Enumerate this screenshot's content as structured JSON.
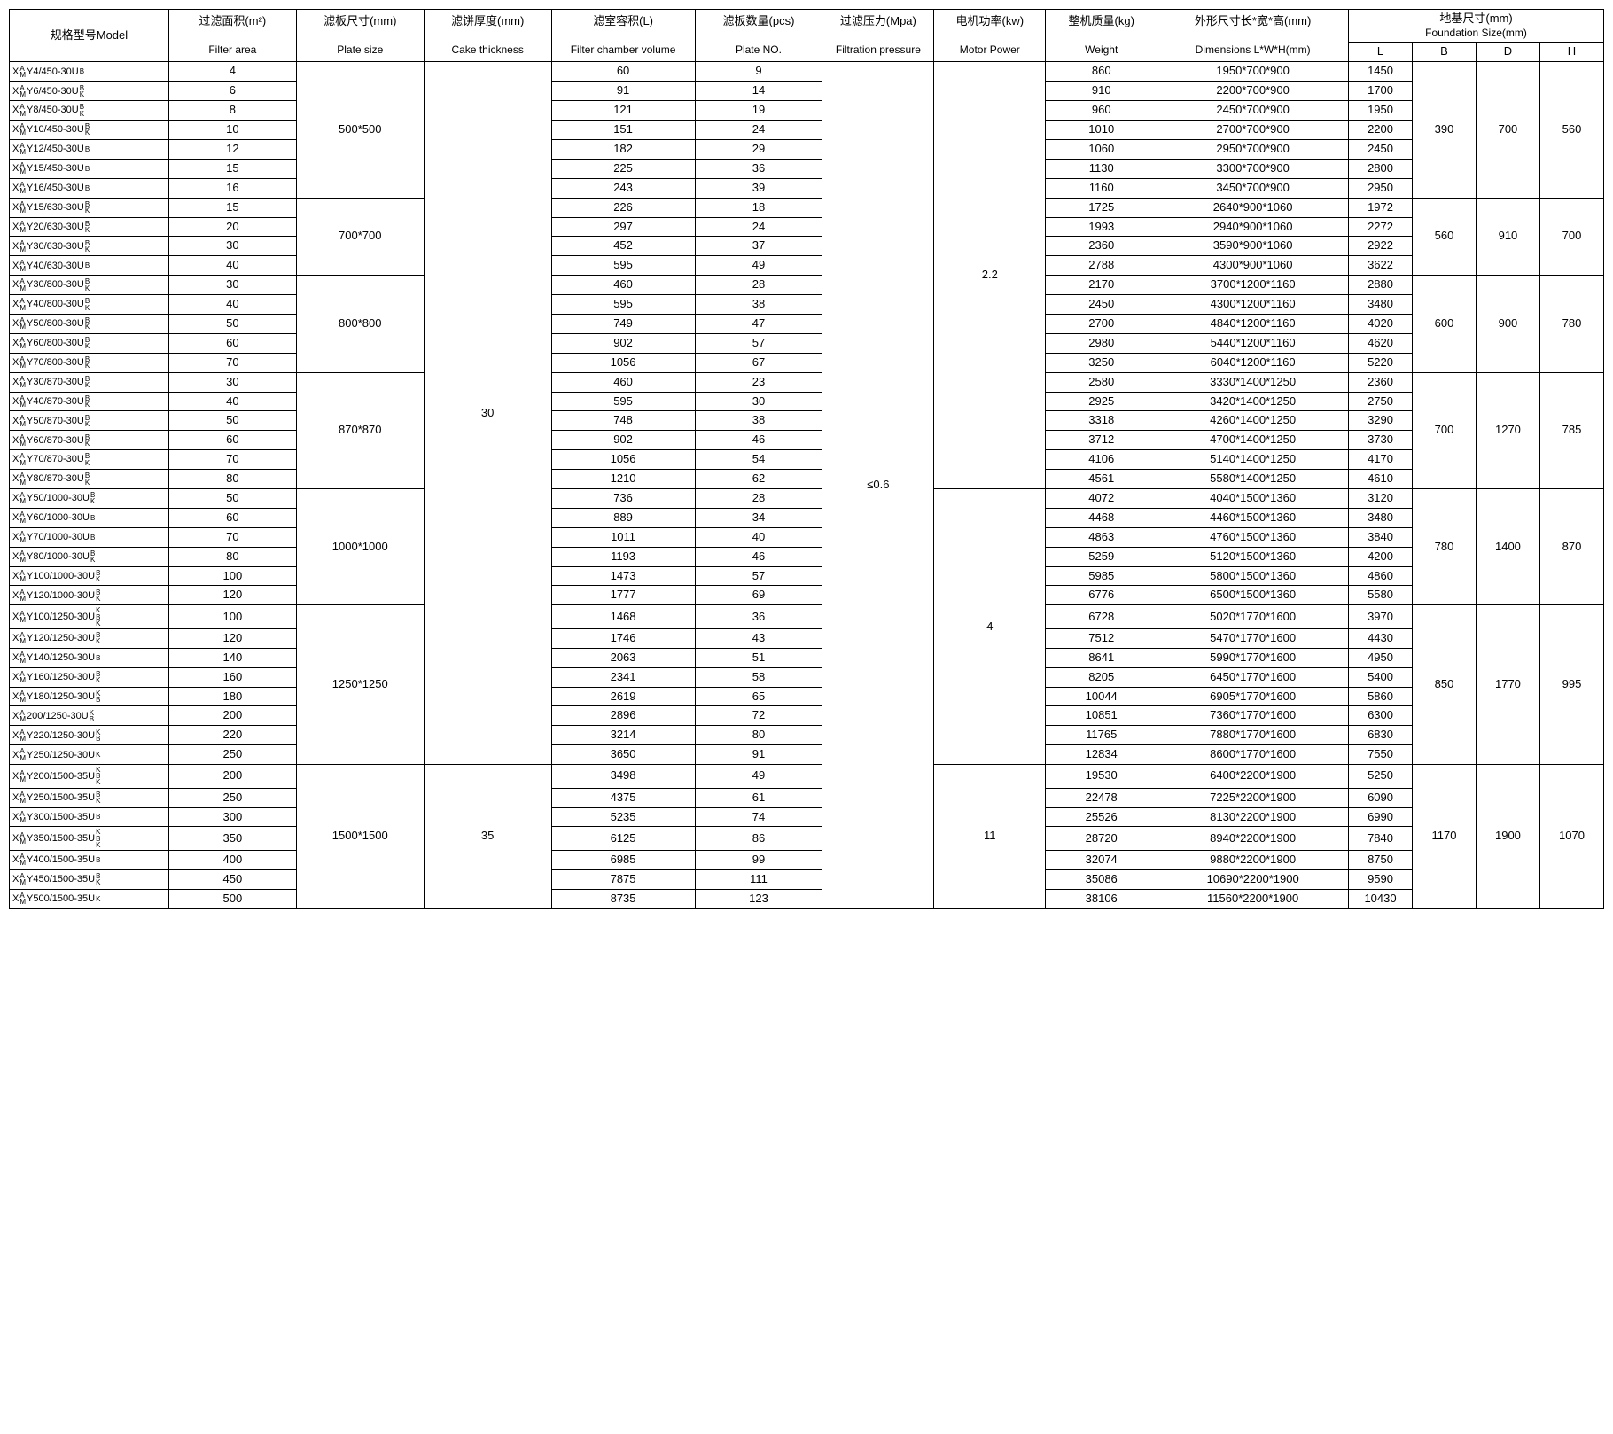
{
  "headers": {
    "model_cn": "规格型号Model",
    "filter_area_cn": "过滤面积(m²)",
    "filter_area_en": "Filter area",
    "plate_size_cn": "滤板尺寸(mm)",
    "plate_size_en": "Plate size",
    "cake_cn": "滤饼厚度(mm)",
    "cake_en": "Cake thickness",
    "vol_cn": "滤室容积(L)",
    "vol_en": "Filter chamber volume",
    "plate_no_cn": "滤板数量(pcs)",
    "plate_no_en": "Plate NO.",
    "pressure_cn": "过滤压力(Mpa)",
    "pressure_en": "Filtration pressure",
    "motor_cn": "电机功率(kw)",
    "motor_en": "Motor Power",
    "weight_cn": "整机质量(kg)",
    "weight_en": "Weight",
    "dim_cn": "外形尺寸长*宽*高(mm)",
    "dim_en": "Dimensions L*W*H(mm)",
    "found_cn": "地基尺寸(mm)",
    "found_en": "Foundation Size(mm)",
    "L": "L",
    "B": "B",
    "D": "D",
    "H": "H"
  },
  "prefix_top": "A",
  "prefix_bot": "M",
  "suffix_B": "B",
  "suffix_K": "K",
  "pressure": "≤0.6",
  "cake30": "30",
  "cake35": "35",
  "mp22": "2.2",
  "mp4": "4",
  "mp11": "11",
  "groups": [
    {
      "plate": "500*500",
      "foundB": "390",
      "foundD": "700",
      "foundH": "560",
      "rows": [
        {
          "model": "Y4/450-30U",
          "fa": "4",
          "vol": "60",
          "pn": "9",
          "wt": "860",
          "dim": "1950*700*900",
          "L": "1450",
          "suffix": "B"
        },
        {
          "model": "Y6/450-30U",
          "fa": "6",
          "vol": "91",
          "pn": "14",
          "wt": "910",
          "dim": "2200*700*900",
          "L": "1700",
          "suffix": "BK"
        },
        {
          "model": "Y8/450-30U",
          "fa": "8",
          "vol": "121",
          "pn": "19",
          "wt": "960",
          "dim": "2450*700*900",
          "L": "1950",
          "suffix": "BK"
        },
        {
          "model": "Y10/450-30U",
          "fa": "10",
          "vol": "151",
          "pn": "24",
          "wt": "1010",
          "dim": "2700*700*900",
          "L": "2200",
          "suffix": "BK"
        },
        {
          "model": "Y12/450-30U",
          "fa": "12",
          "vol": "182",
          "pn": "29",
          "wt": "1060",
          "dim": "2950*700*900",
          "L": "2450",
          "suffix": "B"
        },
        {
          "model": "Y15/450-30U",
          "fa": "15",
          "vol": "225",
          "pn": "36",
          "wt": "1130",
          "dim": "3300*700*900",
          "L": "2800",
          "suffix": "B"
        },
        {
          "model": "Y16/450-30U",
          "fa": "16",
          "vol": "243",
          "pn": "39",
          "wt": "1160",
          "dim": "3450*700*900",
          "L": "2950",
          "suffix": "B"
        }
      ]
    },
    {
      "plate": "700*700",
      "foundB": "560",
      "foundD": "910",
      "foundH": "700",
      "rows": [
        {
          "model": "Y15/630-30U",
          "fa": "15",
          "vol": "226",
          "pn": "18",
          "wt": "1725",
          "dim": "2640*900*1060",
          "L": "1972",
          "suffix": "BK"
        },
        {
          "model": "Y20/630-30U",
          "fa": "20",
          "vol": "297",
          "pn": "24",
          "wt": "1993",
          "dim": "2940*900*1060",
          "L": "2272",
          "suffix": "BK"
        },
        {
          "model": "Y30/630-30U",
          "fa": "30",
          "vol": "452",
          "pn": "37",
          "wt": "2360",
          "dim": "3590*900*1060",
          "L": "2922",
          "suffix": "BK"
        },
        {
          "model": "Y40/630-30U",
          "fa": "40",
          "vol": "595",
          "pn": "49",
          "wt": "2788",
          "dim": "4300*900*1060",
          "L": "3622",
          "suffix": "B"
        }
      ]
    },
    {
      "plate": "800*800",
      "foundB": "600",
      "foundD": "900",
      "foundH": "780",
      "rows": [
        {
          "model": "Y30/800-30U",
          "fa": "30",
          "vol": "460",
          "pn": "28",
          "wt": "2170",
          "dim": "3700*1200*1160",
          "L": "2880",
          "suffix": "BK"
        },
        {
          "model": "Y40/800-30U",
          "fa": "40",
          "vol": "595",
          "pn": "38",
          "wt": "2450",
          "dim": "4300*1200*1160",
          "L": "3480",
          "suffix": "BK"
        },
        {
          "model": "Y50/800-30U",
          "fa": "50",
          "vol": "749",
          "pn": "47",
          "wt": "2700",
          "dim": "4840*1200*1160",
          "L": "4020",
          "suffix": "BK"
        },
        {
          "model": "Y60/800-30U",
          "fa": "60",
          "vol": "902",
          "pn": "57",
          "wt": "2980",
          "dim": "5440*1200*1160",
          "L": "4620",
          "suffix": "BK"
        },
        {
          "model": "Y70/800-30U",
          "fa": "70",
          "vol": "1056",
          "pn": "67",
          "wt": "3250",
          "dim": "6040*1200*1160",
          "L": "5220",
          "suffix": "BK"
        }
      ]
    },
    {
      "plate": "870*870",
      "foundB": "700",
      "foundD": "1270",
      "foundH": "785",
      "rows": [
        {
          "model": "Y30/870-30U",
          "fa": "30",
          "vol": "460",
          "pn": "23",
          "wt": "2580",
          "dim": "3330*1400*1250",
          "L": "2360",
          "suffix": "BK"
        },
        {
          "model": "Y40/870-30U",
          "fa": "40",
          "vol": "595",
          "pn": "30",
          "wt": "2925",
          "dim": "3420*1400*1250",
          "L": "2750",
          "suffix": "BK"
        },
        {
          "model": "Y50/870-30U",
          "fa": "50",
          "vol": "748",
          "pn": "38",
          "wt": "3318",
          "dim": "4260*1400*1250",
          "L": "3290",
          "suffix": "BK"
        },
        {
          "model": "Y60/870-30U",
          "fa": "60",
          "vol": "902",
          "pn": "46",
          "wt": "3712",
          "dim": "4700*1400*1250",
          "L": "3730",
          "suffix": "BK"
        },
        {
          "model": "Y70/870-30U",
          "fa": "70",
          "vol": "1056",
          "pn": "54",
          "wt": "4106",
          "dim": "5140*1400*1250",
          "L": "4170",
          "suffix": "BK"
        },
        {
          "model": "Y80/870-30U",
          "fa": "80",
          "vol": "1210",
          "pn": "62",
          "wt": "4561",
          "dim": "5580*1400*1250",
          "L": "4610",
          "suffix": "BK"
        }
      ]
    },
    {
      "plate": "1000*1000",
      "foundB": "780",
      "foundD": "1400",
      "foundH": "870",
      "rows": [
        {
          "model": "Y50/1000-30U",
          "fa": "50",
          "vol": "736",
          "pn": "28",
          "wt": "4072",
          "dim": "4040*1500*1360",
          "L": "3120",
          "suffix": "BK"
        },
        {
          "model": "Y60/1000-30U",
          "fa": "60",
          "vol": "889",
          "pn": "34",
          "wt": "4468",
          "dim": "4460*1500*1360",
          "L": "3480",
          "suffix": "B"
        },
        {
          "model": "Y70/1000-30U",
          "fa": "70",
          "vol": "1011",
          "pn": "40",
          "wt": "4863",
          "dim": "4760*1500*1360",
          "L": "3840",
          "suffix": "B"
        },
        {
          "model": "Y80/1000-30U",
          "fa": "80",
          "vol": "1193",
          "pn": "46",
          "wt": "5259",
          "dim": "5120*1500*1360",
          "L": "4200",
          "suffix": "BK"
        },
        {
          "model": "Y100/1000-30U",
          "fa": "100",
          "vol": "1473",
          "pn": "57",
          "wt": "5985",
          "dim": "5800*1500*1360",
          "L": "4860",
          "suffix": "BK"
        },
        {
          "model": "Y120/1000-30U",
          "fa": "120",
          "vol": "1777",
          "pn": "69",
          "wt": "6776",
          "dim": "6500*1500*1360",
          "L": "5580",
          "suffix": "BK"
        }
      ]
    },
    {
      "plate": "1250*1250",
      "foundB": "850",
      "foundD": "1770",
      "foundH": "995",
      "rows": [
        {
          "model": "Y100/1250-30U",
          "fa": "100",
          "vol": "1468",
          "pn": "36",
          "wt": "6728",
          "dim": "5020*1770*1600",
          "L": "3970",
          "suffix": "KBK"
        },
        {
          "model": "Y120/1250-30U",
          "fa": "120",
          "vol": "1746",
          "pn": "43",
          "wt": "7512",
          "dim": "5470*1770*1600",
          "L": "4430",
          "suffix": "BK"
        },
        {
          "model": "Y140/1250-30U",
          "fa": "140",
          "vol": "2063",
          "pn": "51",
          "wt": "8641",
          "dim": "5990*1770*1600",
          "L": "4950",
          "suffix": "B"
        },
        {
          "model": "Y160/1250-30U",
          "fa": "160",
          "vol": "2341",
          "pn": "58",
          "wt": "8205",
          "dim": "6450*1770*1600",
          "L": "5400",
          "suffix": "BK"
        },
        {
          "model": "Y180/1250-30U",
          "fa": "180",
          "vol": "2619",
          "pn": "65",
          "wt": "10044",
          "dim": "6905*1770*1600",
          "L": "5860",
          "suffix": "KB"
        },
        {
          "model": " 200/1250-30U",
          "fa": "200",
          "vol": "2896",
          "pn": "72",
          "wt": "10851",
          "dim": "7360*1770*1600",
          "L": "6300",
          "suffix": "KB"
        },
        {
          "model": "Y220/1250-30U",
          "fa": "220",
          "vol": "3214",
          "pn": "80",
          "wt": "11765",
          "dim": "7880*1770*1600",
          "L": "6830",
          "suffix": "KB"
        },
        {
          "model": "Y250/1250-30U",
          "fa": "250",
          "vol": "3650",
          "pn": "91",
          "wt": "12834",
          "dim": "8600*1770*1600",
          "L": "7550",
          "suffix": "K"
        }
      ]
    },
    {
      "plate": "1500*1500",
      "foundB": "1170",
      "foundD": "1900",
      "foundH": "1070",
      "rows": [
        {
          "model": "Y200/1500-35U",
          "fa": "200",
          "vol": "3498",
          "pn": "49",
          "wt": "19530",
          "dim": "6400*2200*1900",
          "L": "5250",
          "suffix": "KBK"
        },
        {
          "model": "Y250/1500-35U",
          "fa": "250",
          "vol": "4375",
          "pn": "61",
          "wt": "22478",
          "dim": "7225*2200*1900",
          "L": "6090",
          "suffix": "BK"
        },
        {
          "model": "Y300/1500-35U",
          "fa": "300",
          "vol": "5235",
          "pn": "74",
          "wt": "25526",
          "dim": "8130*2200*1900",
          "L": "6990",
          "suffix": "B"
        },
        {
          "model": "Y350/1500-35U",
          "fa": "350",
          "vol": "6125",
          "pn": "86",
          "wt": "28720",
          "dim": "8940*2200*1900",
          "L": "7840",
          "suffix": "KBK"
        },
        {
          "model": "Y400/1500-35U",
          "fa": "400",
          "vol": "6985",
          "pn": "99",
          "wt": "32074",
          "dim": "9880*2200*1900",
          "L": "8750",
          "suffix": "B"
        },
        {
          "model": "Y450/1500-35U",
          "fa": "450",
          "vol": "7875",
          "pn": "111",
          "wt": "35086",
          "dim": "10690*2200*1900",
          "L": "9590",
          "suffix": "BK"
        },
        {
          "model": "Y500/1500-35U",
          "fa": "500",
          "vol": "8735",
          "pn": "123",
          "wt": "38106",
          "dim": "11560*2200*1900",
          "L": "10430",
          "suffix": "K"
        }
      ]
    }
  ]
}
